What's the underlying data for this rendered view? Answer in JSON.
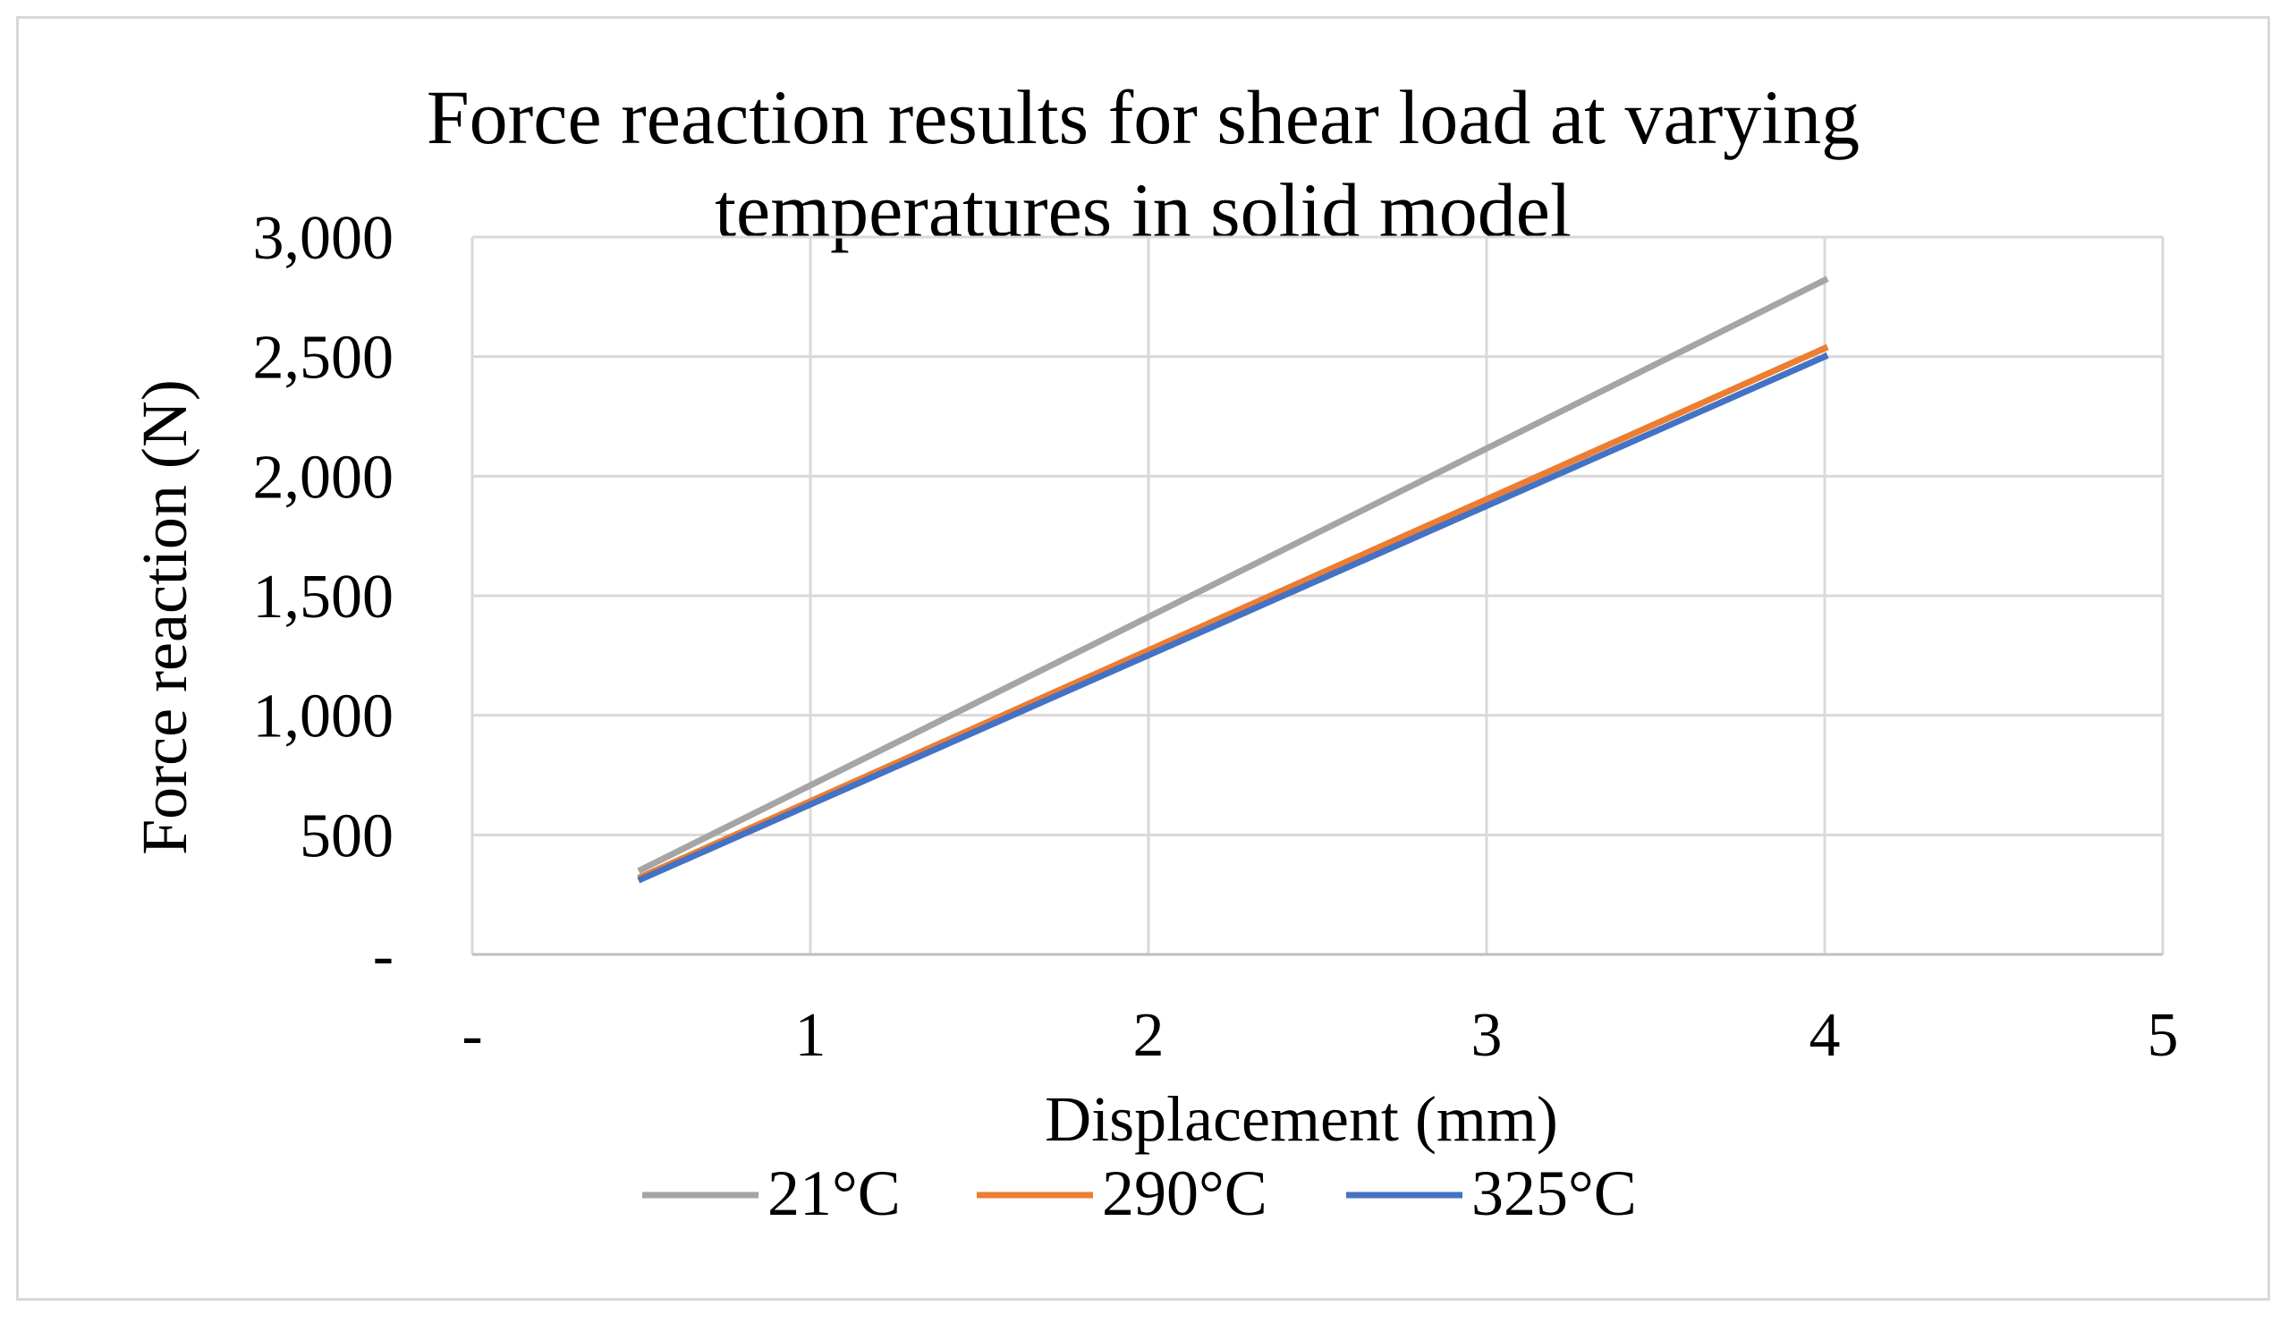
{
  "chart_data": {
    "type": "line",
    "title_lines": [
      "Force reaction results for shear load at varying",
      "temperatures in solid model"
    ],
    "xlabel": "Displacement (mm)",
    "ylabel": "Force reaction (N)",
    "xlim": [
      0,
      5
    ],
    "ylim": [
      0,
      3000
    ],
    "x_ticks": [
      {
        "value": 0,
        "label": "-"
      },
      {
        "value": 1,
        "label": "1"
      },
      {
        "value": 2,
        "label": "2"
      },
      {
        "value": 3,
        "label": "3"
      },
      {
        "value": 4,
        "label": "4"
      },
      {
        "value": 5,
        "label": "5"
      }
    ],
    "y_ticks": [
      {
        "value": 0,
        "label": "-"
      },
      {
        "value": 500,
        "label": "500"
      },
      {
        "value": 1000,
        "label": "1,000"
      },
      {
        "value": 1500,
        "label": "1,500"
      },
      {
        "value": 2000,
        "label": "2,000"
      },
      {
        "value": 2500,
        "label": "2,500"
      },
      {
        "value": 3000,
        "label": "3,000"
      }
    ],
    "grid": true,
    "legend_position": "bottom",
    "series": [
      {
        "name": "21°C",
        "color": "#a5a5a5",
        "x": [
          0.5,
          4
        ],
        "y": [
          355,
          2820
        ]
      },
      {
        "name": "290°C",
        "color": "#ed7d31",
        "x": [
          0.5,
          4
        ],
        "y": [
          325,
          2535
        ]
      },
      {
        "name": "325°C",
        "color": "#4472c4",
        "x": [
          0.5,
          4
        ],
        "y": [
          315,
          2500
        ]
      }
    ]
  }
}
